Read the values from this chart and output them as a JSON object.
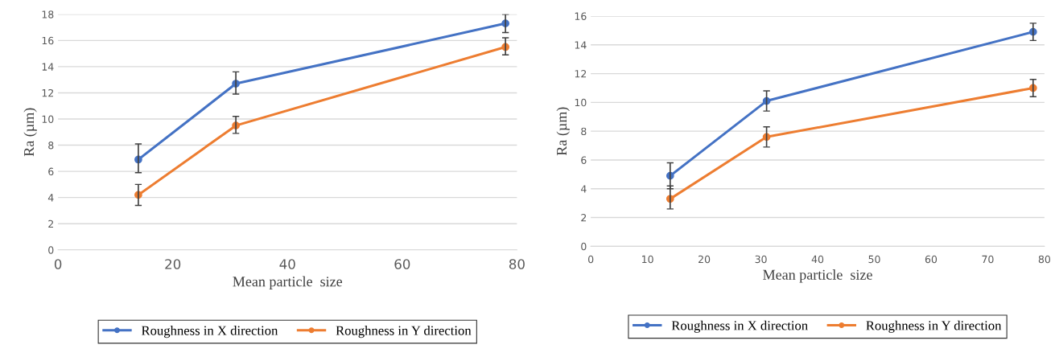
{
  "chart_data": [
    {
      "type": "line",
      "xlabel": "Mean particle  size",
      "ylabel": "Ra (µm)",
      "x": [
        14,
        31,
        78
      ],
      "xlim": [
        0,
        80
      ],
      "xticks": [
        0,
        20,
        40,
        60,
        80
      ],
      "ylim": [
        0,
        18
      ],
      "yticks": [
        0,
        2,
        4,
        6,
        8,
        10,
        12,
        14,
        16,
        18
      ],
      "grid": "y",
      "legend": "bottom",
      "marker": "circle",
      "line_style": "solid",
      "series": [
        {
          "name": "Roughness in X direction",
          "color": "#4472c4",
          "values": [
            6.9,
            12.7,
            17.3
          ],
          "errors": [
            [
              5.9,
              8.1
            ],
            [
              11.9,
              13.6
            ],
            [
              16.6,
              18.0
            ]
          ]
        },
        {
          "name": "Roughness in Y direction",
          "color": "#ed7d31",
          "values": [
            4.2,
            9.5,
            15.5
          ],
          "errors": [
            [
              3.4,
              5.0
            ],
            [
              8.9,
              10.2
            ],
            [
              14.9,
              16.2
            ]
          ]
        }
      ]
    },
    {
      "type": "line",
      "xlabel": "Mean particle  size",
      "ylabel": "Ra (µm)",
      "x": [
        14,
        31,
        78
      ],
      "xlim": [
        0,
        80
      ],
      "xticks": [
        0,
        10,
        20,
        30,
        40,
        50,
        60,
        70,
        80
      ],
      "ylim": [
        0,
        16
      ],
      "yticks": [
        0,
        2,
        4,
        6,
        8,
        10,
        12,
        14,
        16
      ],
      "grid": "y",
      "legend": "bottom",
      "marker": "circle",
      "line_style": "solid",
      "series": [
        {
          "name": "Roughness in X direction",
          "color": "#4472c4",
          "values": [
            4.9,
            10.1,
            14.9
          ],
          "errors": [
            [
              4.0,
              5.8
            ],
            [
              9.4,
              10.8
            ],
            [
              14.3,
              15.5
            ]
          ]
        },
        {
          "name": "Roughness in Y direction",
          "color": "#ed7d31",
          "values": [
            3.3,
            7.6,
            11.0
          ],
          "errors": [
            [
              2.6,
              4.2
            ],
            [
              6.9,
              8.3
            ],
            [
              10.4,
              11.6
            ]
          ]
        }
      ]
    }
  ]
}
